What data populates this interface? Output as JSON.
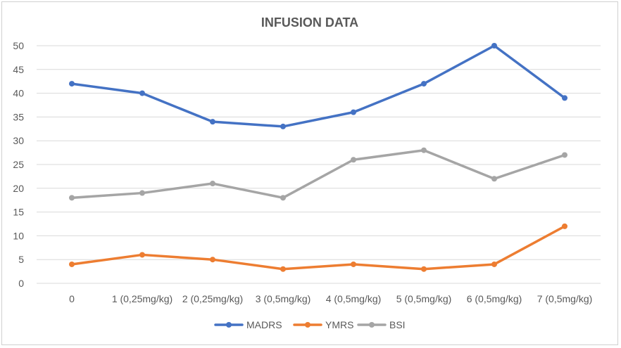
{
  "chart_data": {
    "type": "line",
    "title": "INFUSION DATA",
    "xlabel": "",
    "ylabel": "",
    "categories": [
      "0",
      "1 (0,25mg/kg)",
      "2 (0,25mg/kg)",
      "3 (0,5mg/kg)",
      "4 (0,5mg/kg)",
      "5 (0,5mg/kg)",
      "6 (0,5mg/kg)",
      "7 (0,5mg/kg)"
    ],
    "ylim": [
      0,
      50
    ],
    "yticks": [
      0,
      5,
      10,
      15,
      20,
      25,
      30,
      35,
      40,
      45,
      50
    ],
    "grid": true,
    "legend_position": "bottom",
    "series": [
      {
        "name": "MADRS",
        "color": "#4472c4",
        "values": [
          42,
          40,
          34,
          33,
          36,
          42,
          50,
          39
        ]
      },
      {
        "name": "YMRS",
        "color": "#ed7d31",
        "values": [
          4,
          6,
          5,
          3,
          4,
          3,
          4,
          12
        ]
      },
      {
        "name": "BSI",
        "color": "#a5a5a5",
        "values": [
          18,
          19,
          21,
          18,
          26,
          28,
          22,
          27
        ]
      }
    ]
  }
}
